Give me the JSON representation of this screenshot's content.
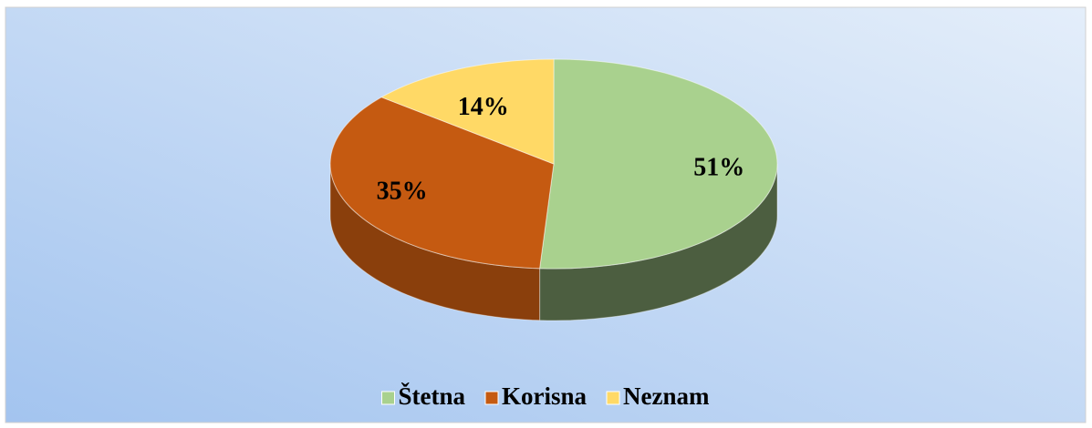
{
  "chart_data": {
    "type": "pie",
    "categories": [
      "Štetna",
      "Korisna",
      "Neznam"
    ],
    "values": [
      51,
      35,
      14
    ],
    "value_labels": [
      "51%",
      "35%",
      "14%"
    ],
    "colors": [
      "#a9d18e",
      "#c55a11",
      "#ffd966"
    ],
    "legend": "bottom"
  }
}
